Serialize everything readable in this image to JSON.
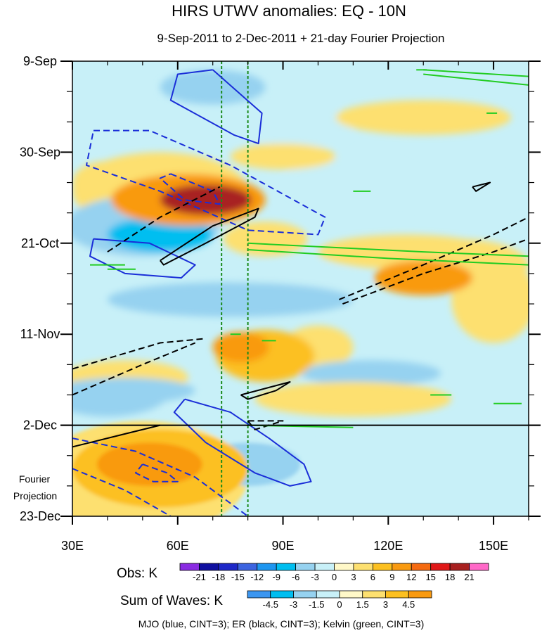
{
  "chart_data": {
    "type": "heatmap",
    "title": "HIRS UTWV anomalies: EQ - 10N",
    "subtitle": "9-Sep-2011 to 2-Dec-2011 + 21-day Fourier Projection",
    "x_ticks": [
      30,
      60,
      90,
      120,
      150
    ],
    "x_tick_labels": [
      "30E",
      "60E",
      "90E",
      "120E",
      "150E"
    ],
    "x_range": [
      30,
      160
    ],
    "y_tick_labels": [
      "9-Sep",
      "30-Sep",
      "21-Oct",
      "11-Nov",
      "2-Dec",
      "23-Dec"
    ],
    "y_tick_days": [
      0,
      21,
      42,
      63,
      84,
      105
    ],
    "y_range_days": [
      0,
      105
    ],
    "projection_start_day": 84,
    "projection_label": [
      "Fourier",
      "Projection"
    ],
    "reference_longitudes": [
      72.5,
      80
    ],
    "obs_legend": {
      "label": "Obs: K",
      "levels": [
        "-21",
        "-18",
        "-15",
        "-12",
        "-9",
        "-6",
        "-3",
        "0",
        "3",
        "6",
        "9",
        "12",
        "15",
        "18",
        "21"
      ],
      "colors": [
        "#8a2be2",
        "#1010a0",
        "#1e28c8",
        "#3c64e0",
        "#1e96f0",
        "#00bef0",
        "#96d2f0",
        "#c8f0f8",
        "#fff8c8",
        "#fde070",
        "#fcc020",
        "#f99a10",
        "#f56a10",
        "#e01818",
        "#a82020",
        "#ff69c8"
      ]
    },
    "waves_legend": {
      "label": "Sum of Waves: K",
      "levels": [
        "-4.5",
        "-3",
        "-1.5",
        "0",
        "1.5",
        "3",
        "4.5"
      ],
      "colors": [
        "#3c96f0",
        "#00bef0",
        "#96d2f0",
        "#c8f0f8",
        "#fff8c8",
        "#fde070",
        "#fcc020",
        "#f99a10"
      ]
    },
    "footer": "MJO (blue, CINT=3); ER (black, CINT=3); Kelvin (green, CINT=3)",
    "anomaly_features": [
      {
        "lon": 68,
        "day": 32,
        "value": 18,
        "rx": 13,
        "ry": 3.5
      },
      {
        "lon": 63,
        "day": 32,
        "value": 10,
        "rx": 22,
        "ry": 6
      },
      {
        "lon": 55,
        "day": 30,
        "value": 5,
        "rx": 25,
        "ry": 9
      },
      {
        "lon": 40,
        "day": 28,
        "value": 4,
        "rx": 10,
        "ry": 5
      },
      {
        "lon": 85,
        "day": 41,
        "value": 4,
        "rx": 12,
        "ry": 4
      },
      {
        "lon": 130,
        "day": 50,
        "value": 9,
        "rx": 14,
        "ry": 4
      },
      {
        "lon": 140,
        "day": 47,
        "value": 5,
        "rx": 20,
        "ry": 6
      },
      {
        "lon": 125,
        "day": 44,
        "value": 4,
        "rx": 25,
        "ry": 4
      },
      {
        "lon": 78,
        "day": 66,
        "value": 10,
        "rx": 8,
        "ry": 3.5
      },
      {
        "lon": 85,
        "day": 68,
        "value": 6,
        "rx": 14,
        "ry": 6
      },
      {
        "lon": 100,
        "day": 66,
        "value": 4,
        "rx": 10,
        "ry": 5
      },
      {
        "lon": 45,
        "day": 73,
        "value": 5,
        "rx": 18,
        "ry": 4
      },
      {
        "lon": 110,
        "day": 78,
        "value": 5,
        "rx": 28,
        "ry": 4
      },
      {
        "lon": 130,
        "day": 13,
        "value": 4,
        "rx": 25,
        "ry": 4
      },
      {
        "lon": 90,
        "day": 22,
        "value": 4,
        "rx": 15,
        "ry": 3
      },
      {
        "lon": 150,
        "day": 55,
        "value": 4,
        "rx": 12,
        "ry": 10
      },
      {
        "lon": 55,
        "day": 40,
        "value": -9,
        "rx": 15,
        "ry": 4
      },
      {
        "lon": 50,
        "day": 38,
        "value": -5,
        "rx": 22,
        "ry": 7
      },
      {
        "lon": 45,
        "day": 76,
        "value": -6,
        "rx": 20,
        "ry": 3
      },
      {
        "lon": 40,
        "day": 76,
        "value": -4,
        "rx": 18,
        "ry": 6
      },
      {
        "lon": 70,
        "day": 6,
        "value": -5,
        "rx": 15,
        "ry": 4
      },
      {
        "lon": 75,
        "day": 55,
        "value": -4,
        "rx": 35,
        "ry": 4
      },
      {
        "lon": 115,
        "day": 72,
        "value": -4,
        "rx": 20,
        "ry": 3
      },
      {
        "lon": 95,
        "day": 52,
        "value": -3,
        "rx": 20,
        "ry": 5
      },
      {
        "lon": 140,
        "day": 30,
        "value": -3,
        "rx": 18,
        "ry": 5
      },
      {
        "lon": 110,
        "day": 28,
        "value": -3,
        "rx": 20,
        "ry": 6
      },
      {
        "lon": 95,
        "day": 15,
        "value": -3,
        "rx": 15,
        "ry": 5
      },
      {
        "lon": 35,
        "day": 48,
        "value": -3,
        "rx": 8,
        "ry": 5
      }
    ],
    "projection_features": [
      {
        "lon": 52,
        "day": 93,
        "value": 5,
        "rx": 15,
        "ry": 5
      },
      {
        "lon": 55,
        "day": 94,
        "value": 3.5,
        "rx": 25,
        "ry": 9
      },
      {
        "lon": 50,
        "day": 96,
        "value": 2,
        "rx": 30,
        "ry": 13
      },
      {
        "lon": 80,
        "day": 93,
        "value": -2.5,
        "rx": 15,
        "ry": 5
      },
      {
        "lon": 75,
        "day": 90,
        "value": -1.5,
        "rx": 25,
        "ry": 7
      }
    ],
    "mjo_contours": [
      {
        "style": "solid",
        "pts": [
          [
            70,
            2
          ],
          [
            84,
            12
          ],
          [
            83,
            19
          ],
          [
            76,
            17
          ],
          [
            58,
            9
          ],
          [
            60,
            3
          ],
          [
            70,
            2
          ]
        ]
      },
      {
        "style": "dashed",
        "pts": [
          [
            36,
            16
          ],
          [
            52,
            16
          ],
          [
            75,
            24
          ],
          [
            102,
            36
          ],
          [
            100,
            40
          ],
          [
            80,
            39
          ],
          [
            55,
            30
          ],
          [
            34,
            24
          ],
          [
            36,
            16
          ]
        ]
      },
      {
        "style": "dashed",
        "pts": [
          [
            58,
            26
          ],
          [
            70,
            30
          ],
          [
            72,
            33
          ],
          [
            62,
            32
          ],
          [
            55,
            27
          ],
          [
            58,
            26
          ]
        ]
      },
      {
        "style": "solid",
        "pts": [
          [
            36,
            41
          ],
          [
            52,
            42
          ],
          [
            65,
            47
          ],
          [
            61,
            50
          ],
          [
            45,
            49
          ],
          [
            35,
            45
          ],
          [
            36,
            41
          ]
        ]
      },
      {
        "style": "solid",
        "pts": [
          [
            62,
            78
          ],
          [
            75,
            81
          ],
          [
            86,
            87
          ],
          [
            96,
            93
          ],
          [
            98,
            97
          ],
          [
            92,
            98
          ],
          [
            82,
            95
          ],
          [
            68,
            88
          ],
          [
            59,
            81
          ],
          [
            62,
            78
          ]
        ]
      },
      {
        "style": "dashed",
        "pts": [
          [
            30,
            87
          ],
          [
            48,
            90
          ],
          [
            65,
            96
          ],
          [
            80,
            105
          ]
        ]
      },
      {
        "style": "dashed",
        "pts": [
          [
            30,
            94
          ],
          [
            45,
            99
          ],
          [
            58,
            105
          ]
        ]
      },
      {
        "style": "dashed",
        "pts": [
          [
            50,
            93
          ],
          [
            57,
            95
          ],
          [
            60,
            97
          ],
          [
            53,
            97
          ],
          [
            48,
            95
          ],
          [
            50,
            93
          ]
        ]
      }
    ],
    "er_contours": [
      {
        "style": "dashed",
        "pts": [
          [
            40,
            44
          ],
          [
            55,
            36
          ],
          [
            72,
            29
          ]
        ]
      },
      {
        "style": "solid",
        "pts": [
          [
            55,
            46
          ],
          [
            70,
            38
          ],
          [
            83,
            34
          ],
          [
            82,
            36
          ],
          [
            68,
            42
          ],
          [
            56,
            47
          ],
          [
            55,
            46
          ]
        ]
      },
      {
        "style": "dashed",
        "pts": [
          [
            30,
            71
          ],
          [
            55,
            65
          ],
          [
            68,
            64
          ]
        ]
      },
      {
        "style": "dashed",
        "pts": [
          [
            30,
            77
          ],
          [
            50,
            70
          ],
          [
            65,
            65
          ]
        ]
      },
      {
        "style": "solid",
        "pts": [
          [
            78,
            77
          ],
          [
            92,
            74
          ],
          [
            88,
            76
          ],
          [
            80,
            78
          ],
          [
            78,
            77
          ]
        ]
      },
      {
        "style": "dashed",
        "pts": [
          [
            80,
            83
          ],
          [
            90,
            83
          ],
          [
            82,
            85
          ],
          [
            80,
            83
          ]
        ]
      },
      {
        "style": "dashed",
        "pts": [
          [
            107,
            56
          ],
          [
            130,
            49
          ],
          [
            150,
            44
          ],
          [
            160,
            41
          ]
        ]
      },
      {
        "style": "dashed",
        "pts": [
          [
            106,
            55
          ],
          [
            130,
            47
          ],
          [
            150,
            40
          ],
          [
            160,
            36
          ]
        ]
      },
      {
        "style": "solid",
        "pts": [
          [
            144,
            29
          ],
          [
            149,
            28
          ],
          [
            145,
            30
          ],
          [
            144,
            29
          ]
        ]
      },
      {
        "style": "solid",
        "pts": [
          [
            30,
            89
          ],
          [
            45,
            86
          ],
          [
            55,
            84
          ]
        ]
      }
    ],
    "kelvin_contours": [
      {
        "pts": [
          [
            130,
            2
          ],
          [
            160,
            3.5
          ]
        ]
      },
      {
        "pts": [
          [
            130,
            3
          ],
          [
            160,
            5.5
          ]
        ]
      },
      {
        "pts": [
          [
            80,
            42
          ],
          [
            130,
            44
          ],
          [
            160,
            45
          ]
        ]
      },
      {
        "pts": [
          [
            80,
            43.5
          ],
          [
            120,
            45.5
          ],
          [
            160,
            47
          ]
        ]
      },
      {
        "pts": [
          [
            35,
            47
          ],
          [
            45,
            47
          ]
        ]
      },
      {
        "pts": [
          [
            40,
            48
          ],
          [
            48,
            48
          ]
        ]
      },
      {
        "pts": [
          [
            75,
            63
          ],
          [
            78,
            63
          ]
        ]
      },
      {
        "pts": [
          [
            84,
            64.5
          ],
          [
            88,
            64.5
          ]
        ]
      },
      {
        "pts": [
          [
            110,
            30
          ],
          [
            115,
            30
          ]
        ]
      },
      {
        "pts": [
          [
            80,
            84
          ],
          [
            110,
            84.5
          ]
        ]
      },
      {
        "pts": [
          [
            132,
            77
          ],
          [
            138,
            77
          ]
        ]
      },
      {
        "pts": [
          [
            150,
            79
          ],
          [
            158,
            79
          ]
        ]
      },
      {
        "pts": [
          [
            128,
            2
          ],
          [
            131,
            2
          ]
        ]
      },
      {
        "pts": [
          [
            148,
            12
          ],
          [
            151,
            12
          ]
        ]
      }
    ]
  }
}
